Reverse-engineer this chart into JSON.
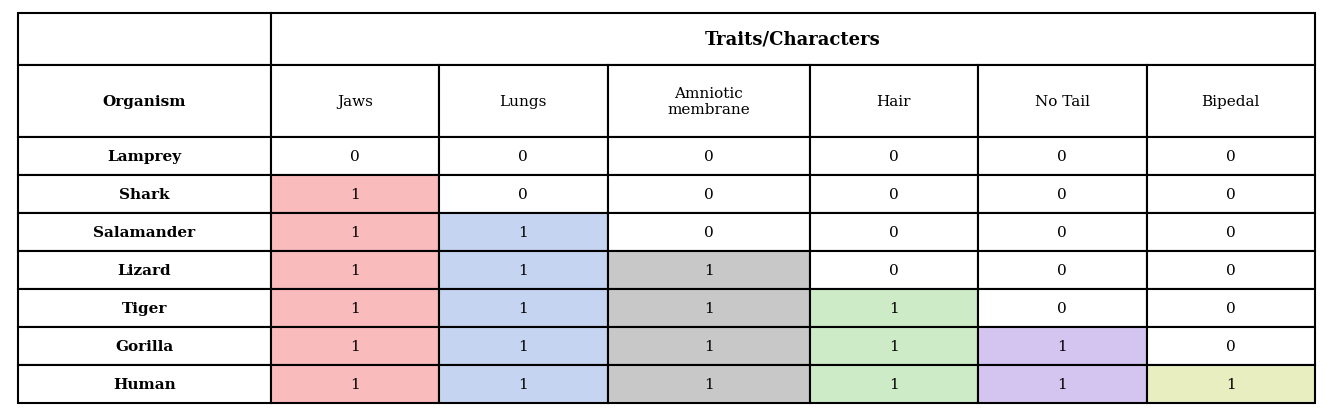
{
  "header_top": "Traits/Characters",
  "col_headers": [
    "Organism",
    "Jaws",
    "Lungs",
    "Amniotic\nmembrane",
    "Hair",
    "No Tail",
    "Bipedal"
  ],
  "rows": [
    [
      "Lamprey",
      "0",
      "0",
      "0",
      "0",
      "0",
      "0"
    ],
    [
      "Shark",
      "1",
      "0",
      "0",
      "0",
      "0",
      "0"
    ],
    [
      "Salamander",
      "1",
      "1",
      "0",
      "0",
      "0",
      "0"
    ],
    [
      "Lizard",
      "1",
      "1",
      "1",
      "0",
      "0",
      "0"
    ],
    [
      "Tiger",
      "1",
      "1",
      "1",
      "1",
      "0",
      "0"
    ],
    [
      "Gorilla",
      "1",
      "1",
      "1",
      "1",
      "1",
      "0"
    ],
    [
      "Human",
      "1",
      "1",
      "1",
      "1",
      "1",
      "1"
    ]
  ],
  "trait_colors": {
    "Jaws": "#F9BBBB",
    "Lungs": "#C5D4F0",
    "Amniotic\nmembrane": "#C8C8C8",
    "Hair": "#CEEBC8",
    "No Tail": "#D4C5F0",
    "Bipedal": "#E8EEC0"
  },
  "col_widths": [
    1.5,
    1.0,
    1.0,
    1.2,
    1.0,
    1.0,
    1.0
  ],
  "background_color": "#FFFFFF",
  "border_color": "#000000"
}
